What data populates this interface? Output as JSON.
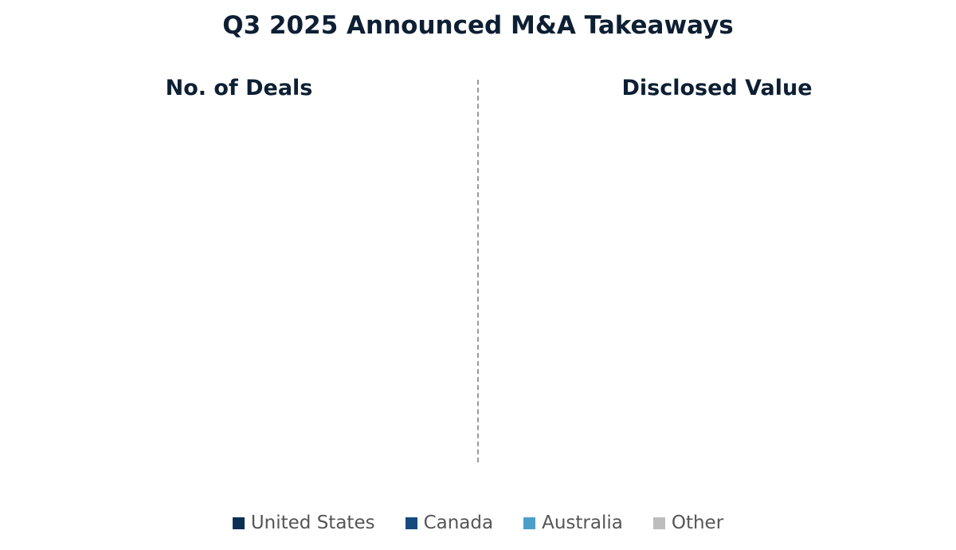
{
  "title": "Q3 2025 Announced M&A Takeaways",
  "panels": [
    {
      "title": "No. of Deals"
    },
    {
      "title": "Disclosed Value"
    }
  ],
  "legend": [
    {
      "name": "United States",
      "color": "#0b2f55"
    },
    {
      "name": "Canada",
      "color": "#174a7c"
    },
    {
      "name": "Australia",
      "color": "#4a9fca"
    },
    {
      "name": "Other",
      "color": "#bdbdbd"
    }
  ]
}
